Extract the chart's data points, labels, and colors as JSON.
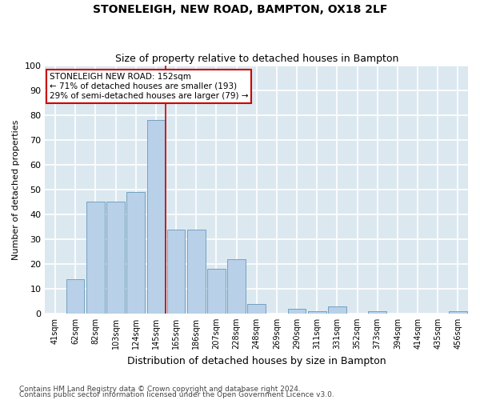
{
  "title": "STONELEIGH, NEW ROAD, BAMPTON, OX18 2LF",
  "subtitle": "Size of property relative to detached houses in Bampton",
  "xlabel": "Distribution of detached houses by size in Bampton",
  "ylabel": "Number of detached properties",
  "categories": [
    "41sqm",
    "62sqm",
    "82sqm",
    "103sqm",
    "124sqm",
    "145sqm",
    "165sqm",
    "186sqm",
    "207sqm",
    "228sqm",
    "248sqm",
    "269sqm",
    "290sqm",
    "311sqm",
    "331sqm",
    "352sqm",
    "373sqm",
    "394sqm",
    "414sqm",
    "435sqm",
    "456sqm"
  ],
  "values": [
    0,
    14,
    45,
    45,
    49,
    78,
    34,
    34,
    18,
    22,
    4,
    0,
    2,
    1,
    3,
    0,
    1,
    0,
    0,
    0,
    1
  ],
  "bar_color": "#b8d0e8",
  "bar_edge_color": "#6699bb",
  "background_color": "#dce8f0",
  "grid_color": "#ffffff",
  "annotation_text": "STONELEIGH NEW ROAD: 152sqm\n← 71% of detached houses are smaller (193)\n29% of semi-detached houses are larger (79) →",
  "annotation_box_color": "#ffffff",
  "annotation_box_edge": "#cc0000",
  "vline_x": 5.5,
  "vline_color": "#cc0000",
  "ylim": [
    0,
    100
  ],
  "yticks": [
    0,
    10,
    20,
    30,
    40,
    50,
    60,
    70,
    80,
    90,
    100
  ],
  "footer1": "Contains HM Land Registry data © Crown copyright and database right 2024.",
  "footer2": "Contains public sector information licensed under the Open Government Licence v3.0.",
  "fig_width": 6.0,
  "fig_height": 5.0,
  "fig_bg": "#ffffff"
}
